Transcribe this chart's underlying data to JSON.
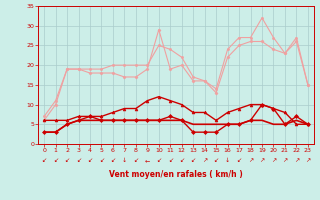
{
  "x": [
    0,
    1,
    2,
    3,
    4,
    5,
    6,
    7,
    8,
    9,
    10,
    11,
    12,
    13,
    14,
    15,
    16,
    17,
    18,
    19,
    20,
    21,
    22,
    23
  ],
  "series": [
    {
      "values": [
        7,
        11,
        19,
        19,
        19,
        19,
        20,
        20,
        20,
        20,
        25,
        24,
        22,
        17,
        16,
        14,
        24,
        27,
        27,
        32,
        27,
        23,
        27,
        15
      ],
      "color": "#f0a0a0",
      "marker": "o",
      "markersize": 1.5,
      "linewidth": 0.8,
      "zorder": 2
    },
    {
      "values": [
        6,
        10,
        19,
        19,
        18,
        18,
        18,
        17,
        17,
        19,
        29,
        19,
        20,
        16,
        16,
        13,
        22,
        25,
        26,
        26,
        24,
        23,
        26,
        15
      ],
      "color": "#f0a0a0",
      "marker": "D",
      "markersize": 1.5,
      "linewidth": 0.8,
      "zorder": 2
    },
    {
      "values": [
        6,
        6,
        6,
        7,
        7,
        7,
        8,
        9,
        9,
        11,
        12,
        11,
        10,
        8,
        8,
        6,
        8,
        9,
        10,
        10,
        9,
        8,
        5,
        5
      ],
      "color": "#cc0000",
      "marker": "^",
      "markersize": 2.0,
      "linewidth": 1.0,
      "zorder": 3
    },
    {
      "values": [
        3,
        3,
        5,
        6,
        6,
        6,
        6,
        6,
        6,
        6,
        6,
        6,
        6,
        5,
        5,
        5,
        5,
        5,
        6,
        6,
        5,
        5,
        6,
        5
      ],
      "color": "#cc0000",
      "marker": null,
      "markersize": 0,
      "linewidth": 1.2,
      "zorder": 3
    },
    {
      "values": [
        3,
        3,
        5,
        6,
        7,
        6,
        6,
        6,
        6,
        6,
        6,
        7,
        6,
        3,
        3,
        3,
        5,
        5,
        6,
        10,
        9,
        5,
        7,
        5
      ],
      "color": "#cc0000",
      "marker": "D",
      "markersize": 2.0,
      "linewidth": 1.0,
      "zorder": 3
    }
  ],
  "bg_color": "#cceee8",
  "grid_color": "#aacccc",
  "xlabel": "Vent moyen/en rafales ( km/h )",
  "ylim": [
    0,
    35
  ],
  "yticks": [
    0,
    5,
    10,
    15,
    20,
    25,
    30,
    35
  ],
  "xlim": [
    -0.5,
    23.5
  ],
  "xticks": [
    0,
    1,
    2,
    3,
    4,
    5,
    6,
    7,
    8,
    9,
    10,
    11,
    12,
    13,
    14,
    15,
    16,
    17,
    18,
    19,
    20,
    21,
    22,
    23
  ],
  "tick_color": "#cc0000",
  "label_color": "#cc0000",
  "axis_color": "#cc0000",
  "wind_arrows": [
    "↙",
    "↙",
    "↙",
    "↙",
    "↙",
    "↙",
    "↙",
    "↓",
    "↙",
    "←",
    "↙",
    "↙",
    "↙",
    "↙",
    "↗",
    "↙",
    "↓",
    "↙",
    "↗",
    "↗",
    "↗",
    "↗",
    "↗",
    "↗"
  ]
}
